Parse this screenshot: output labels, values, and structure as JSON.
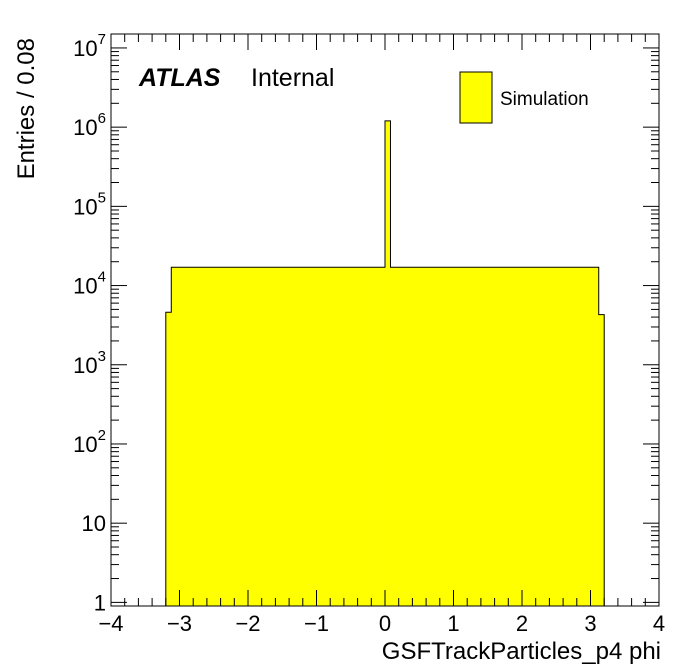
{
  "chart_data": {
    "type": "bar",
    "title": "",
    "xlabel": "GSFTrackParticles_p4 phi",
    "ylabel": "Entries / 0.08",
    "xlim": [
      -4,
      4
    ],
    "ylim": [
      0.9,
      15000000
    ],
    "yscale": "log",
    "bin_width": 0.08,
    "fill_color": "#ffff00",
    "x_ticks": [
      {
        "value": -4,
        "label": "−4"
      },
      {
        "value": -3,
        "label": "−3"
      },
      {
        "value": -2,
        "label": "−2"
      },
      {
        "value": -1,
        "label": "−1"
      },
      {
        "value": 0,
        "label": "0"
      },
      {
        "value": 1,
        "label": "1"
      },
      {
        "value": 2,
        "label": "2"
      },
      {
        "value": 3,
        "label": "3"
      },
      {
        "value": 4,
        "label": "4"
      }
    ],
    "y_ticks": [
      {
        "value": 1,
        "base": "1",
        "exp": ""
      },
      {
        "value": 10,
        "base": "10",
        "exp": ""
      },
      {
        "value": 100,
        "base": "10",
        "exp": "2"
      },
      {
        "value": 1000,
        "base": "10",
        "exp": "3"
      },
      {
        "value": 10000,
        "base": "10",
        "exp": "4"
      },
      {
        "value": 100000,
        "base": "10",
        "exp": "5"
      },
      {
        "value": 1000000,
        "base": "10",
        "exp": "6"
      },
      {
        "value": 10000000,
        "base": "10",
        "exp": "7"
      }
    ],
    "histogram": {
      "start": -3.2,
      "edge_bins": [
        {
          "x": -3.2,
          "value": 4600
        },
        {
          "x": 3.12,
          "value": 4300
        }
      ],
      "bulk_value": 17000,
      "bulk_range": [
        -3.12,
        3.12
      ],
      "spike": {
        "x": 0.0,
        "value": 1200000
      }
    },
    "legend": {
      "position": "top-right",
      "entries": [
        {
          "name": "Simulation",
          "color": "#ffff00"
        }
      ]
    },
    "annotations": {
      "experiment": "ATLAS",
      "status": "Internal"
    }
  }
}
